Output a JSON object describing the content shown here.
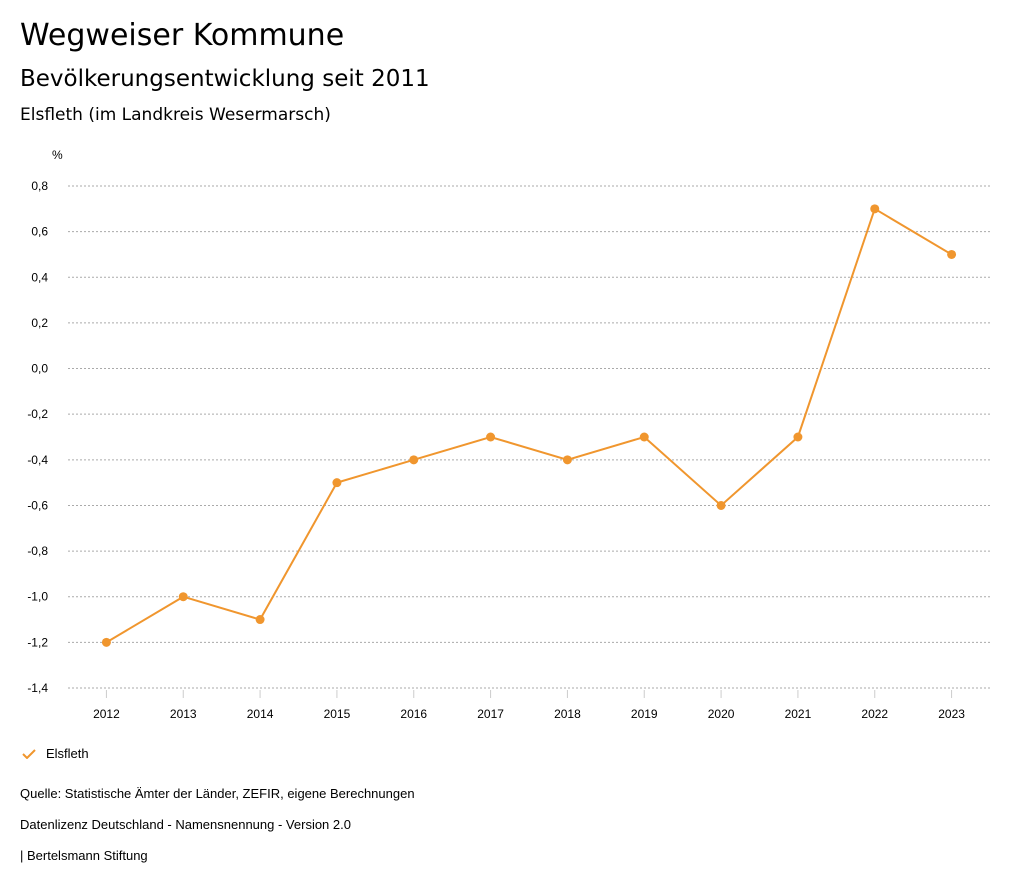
{
  "header": {
    "title": "Wegweiser Kommune",
    "subtitle": "Bevölkerungsentwicklung seit 2011",
    "region": "Elsfleth (im Landkreis Wesermarsch)"
  },
  "chart_data": {
    "type": "line",
    "ylabel": "%",
    "categories": [
      "2012",
      "2013",
      "2014",
      "2015",
      "2016",
      "2017",
      "2018",
      "2019",
      "2020",
      "2021",
      "2022",
      "2023"
    ],
    "series": [
      {
        "name": "Elsfleth",
        "color": "#f0962e",
        "values": [
          -1.2,
          -1.0,
          -1.1,
          -0.5,
          -0.4,
          -0.3,
          -0.4,
          -0.3,
          -0.6,
          -0.3,
          0.7,
          0.5
        ]
      }
    ],
    "ylim": [
      -1.4,
      0.8
    ],
    "yticks": [
      "0,8",
      "0,6",
      "0,4",
      "0,2",
      "0,0",
      "-0,2",
      "-0,4",
      "-0,6",
      "-0,8",
      "-1,0",
      "-1,2",
      "-1,4"
    ],
    "grid": true,
    "legend": "bottom-left"
  },
  "legend": {
    "label": "Elsfleth"
  },
  "footer": {
    "source": "Quelle: Statistische Ämter der Länder, ZEFIR, eigene Berechnungen",
    "license": "Datenlizenz Deutschland - Namensnennung - Version 2.0",
    "publisher": "| Bertelsmann Stiftung"
  }
}
